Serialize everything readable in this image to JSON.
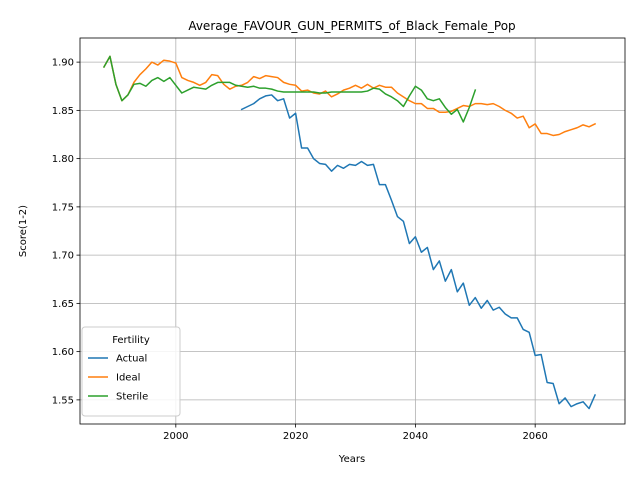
{
  "chart_data": {
    "type": "line",
    "title": "Average_FAVOUR_GUN_PERMITS_of_Black_Female_Pop",
    "xlabel": "Years",
    "ylabel": "Score(1-2)",
    "xlim": [
      1984,
      2075
    ],
    "ylim": [
      1.525,
      1.925
    ],
    "xticks": [
      2000,
      2020,
      2040,
      2060
    ],
    "yticks": [
      1.55,
      1.6,
      1.65,
      1.7,
      1.75,
      1.8,
      1.85,
      1.9
    ],
    "ytick_labels": [
      "1.55",
      "1.60",
      "1.65",
      "1.70",
      "1.75",
      "1.80",
      "1.85",
      "1.90"
    ],
    "grid": true,
    "legend": {
      "title": "Fertility",
      "placement": "lower-left"
    },
    "series": [
      {
        "name": "Actual",
        "color": "#1f77b4",
        "x": [
          2011,
          2012,
          2013,
          2014,
          2015,
          2016,
          2017,
          2018,
          2019,
          2020,
          2021,
          2022,
          2023,
          2024,
          2025,
          2026,
          2027,
          2028,
          2029,
          2030,
          2031,
          2032,
          2033,
          2034,
          2035,
          2036,
          2037,
          2038,
          2039,
          2040,
          2041,
          2042,
          2043,
          2044,
          2045,
          2046,
          2047,
          2048,
          2049,
          2050,
          2051,
          2052,
          2053,
          2054,
          2055,
          2056,
          2057,
          2058,
          2059,
          2060,
          2061,
          2062,
          2063,
          2064,
          2065,
          2066,
          2067,
          2068,
          2069,
          2070
        ],
        "y": [
          1.851,
          1.854,
          1.857,
          1.862,
          1.865,
          1.866,
          1.86,
          1.862,
          1.842,
          1.847,
          1.811,
          1.811,
          1.8,
          1.795,
          1.794,
          1.787,
          1.793,
          1.79,
          1.794,
          1.793,
          1.797,
          1.793,
          1.794,
          1.773,
          1.773,
          1.757,
          1.74,
          1.735,
          1.712,
          1.719,
          1.703,
          1.708,
          1.685,
          1.694,
          1.673,
          1.685,
          1.662,
          1.671,
          1.648,
          1.656,
          1.645,
          1.653,
          1.643,
          1.646,
          1.639,
          1.635,
          1.635,
          1.623,
          1.62,
          1.596,
          1.597,
          1.568,
          1.567,
          1.546,
          1.552,
          1.543,
          1.546,
          1.548,
          1.541,
          1.555
        ]
      },
      {
        "name": "Ideal",
        "color": "#ff7f0e",
        "x": [
          1988,
          1989,
          1990,
          1991,
          1992,
          1993,
          1994,
          1995,
          1996,
          1997,
          1998,
          1999,
          2000,
          2001,
          2002,
          2003,
          2004,
          2005,
          2006,
          2007,
          2008,
          2009,
          2010,
          2011,
          2012,
          2013,
          2014,
          2015,
          2016,
          2017,
          2018,
          2019,
          2020,
          2021,
          2022,
          2023,
          2024,
          2025,
          2026,
          2027,
          2028,
          2029,
          2030,
          2031,
          2032,
          2033,
          2034,
          2035,
          2036,
          2037,
          2038,
          2039,
          2040,
          2041,
          2042,
          2043,
          2044,
          2045,
          2046,
          2047,
          2048,
          2049,
          2050,
          2051,
          2052,
          2053,
          2054,
          2055,
          2056,
          2057,
          2058,
          2059,
          2060,
          2061,
          2062,
          2063,
          2064,
          2065,
          2066,
          2067,
          2068,
          2069,
          2070
        ],
        "y": [
          1.895,
          1.906,
          1.877,
          1.86,
          1.866,
          1.879,
          1.887,
          1.893,
          1.9,
          1.897,
          1.902,
          1.901,
          1.899,
          1.884,
          1.881,
          1.879,
          1.876,
          1.879,
          1.887,
          1.886,
          1.877,
          1.872,
          1.875,
          1.876,
          1.879,
          1.885,
          1.883,
          1.886,
          1.885,
          1.884,
          1.879,
          1.877,
          1.876,
          1.87,
          1.871,
          1.868,
          1.867,
          1.87,
          1.864,
          1.867,
          1.871,
          1.873,
          1.876,
          1.873,
          1.877,
          1.873,
          1.876,
          1.874,
          1.874,
          1.868,
          1.864,
          1.86,
          1.857,
          1.857,
          1.852,
          1.852,
          1.848,
          1.848,
          1.849,
          1.852,
          1.855,
          1.854,
          1.857,
          1.857,
          1.856,
          1.857,
          1.854,
          1.85,
          1.847,
          1.842,
          1.844,
          1.832,
          1.836,
          1.826,
          1.826,
          1.824,
          1.825,
          1.828,
          1.83,
          1.832,
          1.835,
          1.833,
          1.836
        ]
      },
      {
        "name": "Sterile",
        "color": "#2ca02c",
        "x": [
          1988,
          1989,
          1990,
          1991,
          1992,
          1993,
          1994,
          1995,
          1996,
          1997,
          1998,
          1999,
          2000,
          2001,
          2002,
          2003,
          2004,
          2005,
          2006,
          2007,
          2008,
          2009,
          2010,
          2011,
          2012,
          2013,
          2014,
          2015,
          2016,
          2017,
          2018,
          2019,
          2020,
          2021,
          2022,
          2023,
          2024,
          2025,
          2026,
          2027,
          2028,
          2029,
          2030,
          2031,
          2032,
          2033,
          2034,
          2035,
          2036,
          2037,
          2038,
          2039,
          2040,
          2041,
          2042,
          2043,
          2044,
          2045,
          2046,
          2047,
          2048,
          2049,
          2050
        ],
        "y": [
          1.895,
          1.906,
          1.877,
          1.86,
          1.866,
          1.877,
          1.878,
          1.875,
          1.881,
          1.884,
          1.88,
          1.884,
          1.876,
          1.868,
          1.871,
          1.874,
          1.873,
          1.872,
          1.876,
          1.879,
          1.879,
          1.879,
          1.876,
          1.875,
          1.874,
          1.875,
          1.873,
          1.873,
          1.872,
          1.87,
          1.869,
          1.869,
          1.869,
          1.869,
          1.869,
          1.869,
          1.868,
          1.868,
          1.869,
          1.869,
          1.869,
          1.869,
          1.869,
          1.869,
          1.87,
          1.873,
          1.872,
          1.867,
          1.864,
          1.86,
          1.854,
          1.865,
          1.875,
          1.871,
          1.862,
          1.86,
          1.862,
          1.853,
          1.846,
          1.851,
          1.838,
          1.853,
          1.871
        ]
      }
    ]
  }
}
